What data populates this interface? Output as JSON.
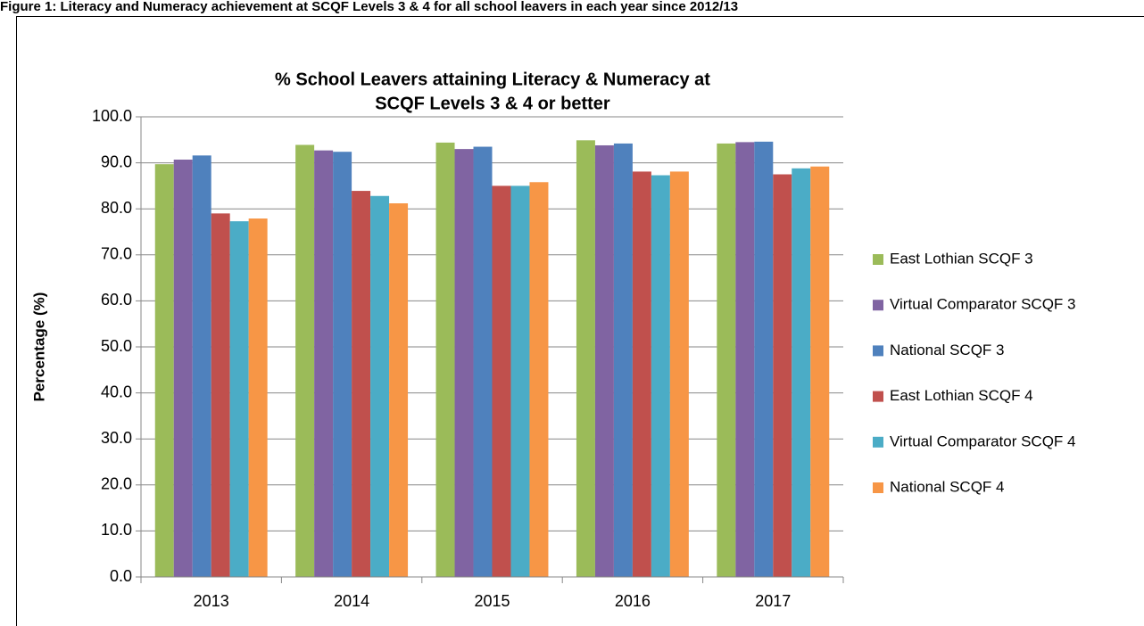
{
  "caption": "Figure 1: Literacy and Numeracy achievement at SCQF Levels 3 & 4 for all school leavers in each year since 2012/13",
  "chart_data": {
    "type": "bar",
    "title": [
      "% School Leavers attaining Literacy & Numeracy at",
      "SCQF Levels 3 & 4 or better"
    ],
    "y_label": "Percentage (%)",
    "categories": [
      "2013",
      "2014",
      "2015",
      "2016",
      "2017"
    ],
    "series": [
      {
        "name": "East Lothian SCQF 3",
        "color": "#9bbb59",
        "values": [
          89.7,
          93.9,
          94.4,
          94.9,
          94.2
        ]
      },
      {
        "name": "Virtual Comparator SCQF 3",
        "color": "#8064a2",
        "values": [
          90.7,
          92.7,
          93.0,
          93.8,
          94.5
        ]
      },
      {
        "name": "National SCQF 3",
        "color": "#4f81bd",
        "values": [
          91.6,
          92.4,
          93.5,
          94.2,
          94.6
        ]
      },
      {
        "name": "East Lothian SCQF 4",
        "color": "#c0504d",
        "values": [
          79.0,
          83.9,
          85.0,
          88.1,
          87.5
        ]
      },
      {
        "name": "Virtual Comparator SCQF 4",
        "color": "#4bacc6",
        "values": [
          77.3,
          82.8,
          85.0,
          87.3,
          88.8
        ]
      },
      {
        "name": "National SCQF 4",
        "color": "#f79646",
        "values": [
          77.9,
          81.2,
          85.8,
          88.1,
          89.2
        ]
      }
    ],
    "ylim": [
      0,
      100
    ],
    "yticks": [
      {
        "value": 0,
        "label": "0.0"
      },
      {
        "value": 10,
        "label": "10.0"
      },
      {
        "value": 20,
        "label": "20.0"
      },
      {
        "value": 30,
        "label": "30.0"
      },
      {
        "value": 40,
        "label": "40.0"
      },
      {
        "value": 50,
        "label": "50.0"
      },
      {
        "value": 60,
        "label": "60.0"
      },
      {
        "value": 70,
        "label": "70.0"
      },
      {
        "value": 80,
        "label": "80.0"
      },
      {
        "value": 90,
        "label": "90.0"
      },
      {
        "value": 100,
        "label": "100.0"
      }
    ],
    "grid": true,
    "legend": "right"
  }
}
